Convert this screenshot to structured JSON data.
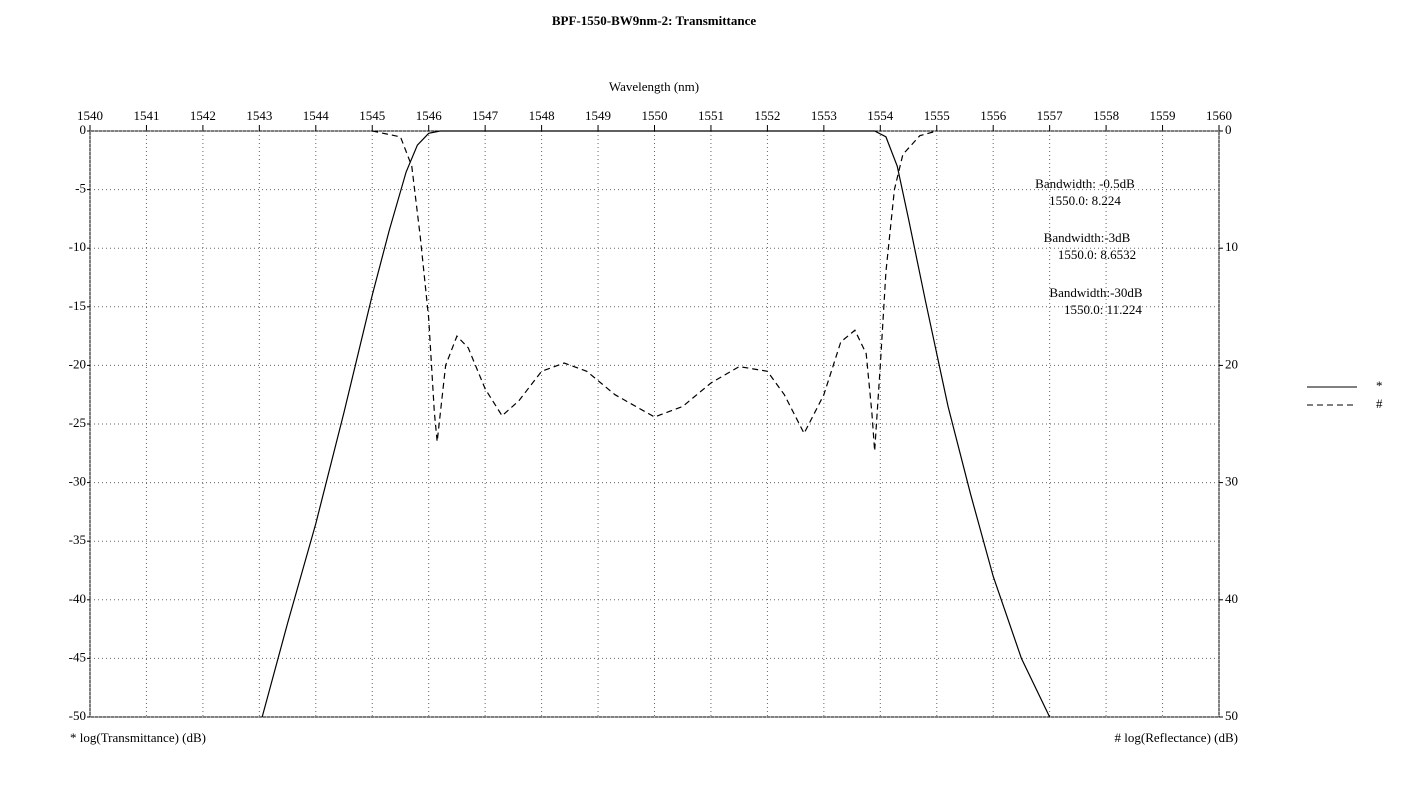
{
  "chart_data": {
    "type": "line",
    "title": "BPF-1550-BW9nm-2: Transmittance",
    "x_label": "Wavelength (nm)",
    "y_label": "* log(Transmittance) (dB)",
    "y2_label": "# log(Reflectance) (dB)",
    "xlim": [
      1540,
      1560
    ],
    "xticks": [
      1540,
      1541,
      1542,
      1543,
      1544,
      1545,
      1546,
      1547,
      1548,
      1549,
      1550,
      1551,
      1552,
      1553,
      1554,
      1555,
      1556,
      1557,
      1558,
      1559,
      1560
    ],
    "ylim": [
      -50,
      0
    ],
    "yticks": [
      0,
      -5,
      -10,
      -15,
      -20,
      -25,
      -30,
      -35,
      -40,
      -45,
      -50
    ],
    "y2lim": [
      50,
      0
    ],
    "y2ticks": [
      0,
      10,
      20,
      30,
      40,
      50
    ],
    "grid": true,
    "legend": "right",
    "annotations": [
      "Bandwidth: -0.5dB",
      "1550.0: 8.224",
      "Bandwidth:-3dB",
      "1550.0: 8.6532",
      "Bandwidth:-30dB",
      "1550.0: 11.224"
    ],
    "series": [
      {
        "name": "*",
        "color": "#000000",
        "dash": "solid",
        "x": [
          1543.05,
          1543.5,
          1544,
          1544.5,
          1545,
          1545.3,
          1545.6,
          1545.8,
          1546.0,
          1546.2,
          1553.9,
          1554.1,
          1554.3,
          1554.5,
          1554.8,
          1555.2,
          1555.6,
          1556,
          1556.5,
          1557
        ],
        "values": [
          -50,
          -42,
          -33.5,
          -24,
          -14,
          -8.5,
          -3.5,
          -1.2,
          -0.2,
          0,
          0,
          -0.5,
          -3,
          -7.5,
          -14.5,
          -23.5,
          -31,
          -38,
          -45,
          -50
        ]
      },
      {
        "name": "#",
        "color": "#000000",
        "dash": "dashed",
        "axis": "y2",
        "x": [
          1545,
          1545.5,
          1545.7,
          1545.85,
          1546.0,
          1546.1,
          1546.15,
          1546.3,
          1546.5,
          1546.7,
          1547.0,
          1547.3,
          1547.6,
          1548,
          1548.4,
          1548.8,
          1549.3,
          1550,
          1550.5,
          1551,
          1551.5,
          1552,
          1552.3,
          1552.65,
          1553,
          1553.3,
          1553.55,
          1553.75,
          1553.85,
          1553.9,
          1554.0,
          1554.1,
          1554.25,
          1554.4,
          1554.7,
          1555
        ],
        "values": [
          0,
          0.5,
          3,
          9,
          16,
          24,
          26.5,
          20,
          17.5,
          18.5,
          22,
          24.3,
          23,
          20.5,
          19.8,
          20.5,
          22.5,
          24.4,
          23.5,
          21.5,
          20.1,
          20.5,
          22.5,
          25.8,
          22.5,
          18,
          17,
          19,
          24,
          27.3,
          20,
          12,
          5,
          2,
          0.4,
          0
        ]
      }
    ]
  }
}
